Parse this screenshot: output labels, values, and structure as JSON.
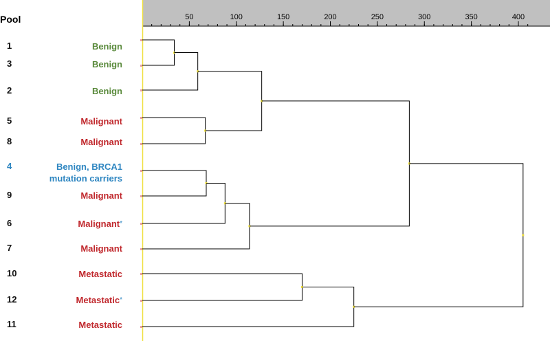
{
  "header": {
    "pool_label": "Pool"
  },
  "axis": {
    "ticks": [
      "50",
      "100",
      "150",
      "200",
      "250",
      "300",
      "350",
      "400"
    ],
    "tick_values": [
      50,
      100,
      150,
      200,
      250,
      300,
      350,
      400
    ],
    "range": [
      0,
      415
    ],
    "minor_step": 10,
    "background": "#c0c0c0"
  },
  "colors": {
    "benign": "#5a8a3c",
    "malignant": "#c0282d",
    "brca": "#2e86c1",
    "metastatic": "#c0282d",
    "axis_line": "#f0e040",
    "node": "#f0e040",
    "branch": "#000000"
  },
  "leaves": [
    {
      "pool": "1",
      "label": "Benign",
      "cls": "benign"
    },
    {
      "pool": "3",
      "label": "Benign",
      "cls": "benign"
    },
    {
      "pool": "2",
      "label": "Benign",
      "cls": "benign"
    },
    {
      "pool": "5",
      "label": "Malignant",
      "cls": "malignant"
    },
    {
      "pool": "8",
      "label": "Malignant",
      "cls": "malignant"
    },
    {
      "pool": "4",
      "label": "Benign, BRCA1",
      "label2": "mutation carriers",
      "cls": "brca"
    },
    {
      "pool": "9",
      "label": "Malignant",
      "cls": "malignant"
    },
    {
      "pool": "6",
      "label": "Malignant",
      "star": "*",
      "cls": "malignant"
    },
    {
      "pool": "7",
      "label": "Malignant",
      "cls": "malignant"
    },
    {
      "pool": "10",
      "label": "Metastatic",
      "cls": "metastatic"
    },
    {
      "pool": "12",
      "label": "Metastatic",
      "star": "*",
      "cls": "metastatic"
    },
    {
      "pool": "11",
      "label": "Metastatic",
      "cls": "metastatic"
    }
  ],
  "merges": [
    {
      "id": "A",
      "children": [
        0,
        1
      ],
      "height": 34
    },
    {
      "id": "B",
      "children": [
        "A",
        2
      ],
      "height": 59
    },
    {
      "id": "C",
      "children": [
        3,
        4
      ],
      "height": 67
    },
    {
      "id": "D",
      "children": [
        "B",
        "C"
      ],
      "height": 127
    },
    {
      "id": "E",
      "children": [
        5,
        6
      ],
      "height": 68
    },
    {
      "id": "F",
      "children": [
        "E",
        7
      ],
      "height": 88
    },
    {
      "id": "G",
      "children": [
        "F",
        8
      ],
      "height": 114
    },
    {
      "id": "H",
      "children": [
        "D",
        "G"
      ],
      "height": 284
    },
    {
      "id": "I",
      "children": [
        9,
        10
      ],
      "height": 170
    },
    {
      "id": "J",
      "children": [
        "I",
        11
      ],
      "height": 225
    },
    {
      "id": "K",
      "children": [
        "H",
        "J"
      ],
      "height": 405
    }
  ]
}
